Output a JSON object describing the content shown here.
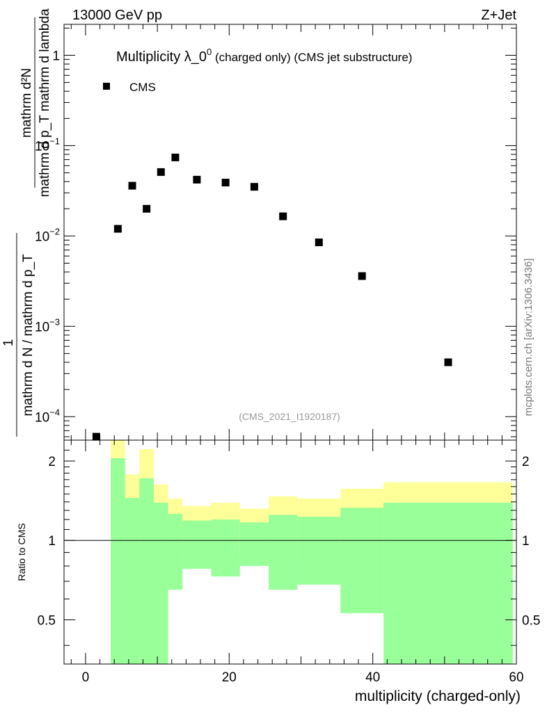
{
  "chart_data": {
    "type": "scatter",
    "header_left": "13000 GeV pp",
    "header_right": "Z+Jet",
    "title_main": "Multiplicity λ_0",
    "title_sup": "0",
    "title_rest": " (charged only) (CMS jet substructure)",
    "ylabel_top": "mathrm d²N",
    "ylabel_bottom": "mathrm d p_T mathrm d lambda",
    "ylabel_lower_numerator": "1",
    "ylabel_lower_denominator": "mathrm d N / mathrm d p_T",
    "watermark": "(CMS_2021_I1920187)",
    "side_label": "mcplots.cern.ch [arXiv:1306.3436]",
    "xlabel": "multiplicity (charged-only)",
    "ratio_ylabel": "Ratio to CMS",
    "xlim": [
      -3,
      60
    ],
    "ylim_log": [
      5.5e-05,
      2.2
    ],
    "ratio_ylim": [
      0.34,
      2.4
    ],
    "x_ticks": [
      "0",
      "20",
      "40",
      "60"
    ],
    "y_ticks": [
      {
        "base": "1",
        "exp": ""
      },
      {
        "base": "10",
        "exp": "−1"
      },
      {
        "base": "10",
        "exp": "−2"
      },
      {
        "base": "10",
        "exp": "−3"
      },
      {
        "base": "10",
        "exp": "−4"
      }
    ],
    "ratio_ticks": [
      "0.5",
      "1",
      "2"
    ],
    "legend": [
      {
        "name": "CMS",
        "marker": "square",
        "color": "#000000"
      }
    ],
    "series": [
      {
        "name": "CMS",
        "x": [
          1.5,
          4.5,
          6.5,
          8.5,
          10.5,
          12.5,
          15.5,
          19.5,
          23.5,
          27.5,
          32.5,
          38.5,
          50.5
        ],
        "y": [
          6e-05,
          0.012,
          0.036,
          0.02,
          0.051,
          0.074,
          0.042,
          0.039,
          0.035,
          0.0165,
          0.0085,
          0.0036,
          0.0004
        ]
      }
    ],
    "ratio_bands": {
      "inner_color": "#99ff99",
      "outer_color": "#ffff99",
      "bins": [
        {
          "x0": 3.5,
          "x1": 5.5,
          "inner": [
            0.34,
            2.05
          ],
          "outer": [
            0.34,
            2.4
          ]
        },
        {
          "x0": 5.5,
          "x1": 7.5,
          "inner": [
            0.34,
            1.45
          ],
          "outer": [
            0.68,
            1.78
          ]
        },
        {
          "x0": 7.5,
          "x1": 9.5,
          "inner": [
            0.34,
            1.72
          ],
          "outer": [
            0.34,
            2.22
          ]
        },
        {
          "x0": 9.5,
          "x1": 11.5,
          "inner": [
            0.34,
            1.39
          ],
          "outer": [
            0.62,
            1.63
          ]
        },
        {
          "x0": 11.5,
          "x1": 13.5,
          "inner": [
            0.65,
            1.26
          ],
          "outer": [
            0.79,
            1.44
          ]
        },
        {
          "x0": 13.5,
          "x1": 17.5,
          "inner": [
            0.78,
            1.19
          ],
          "outer": [
            0.88,
            1.35
          ]
        },
        {
          "x0": 17.5,
          "x1": 21.5,
          "inner": [
            0.73,
            1.2
          ],
          "outer": [
            0.87,
            1.39
          ]
        },
        {
          "x0": 21.5,
          "x1": 25.5,
          "inner": [
            0.8,
            1.17
          ],
          "outer": [
            0.9,
            1.32
          ]
        },
        {
          "x0": 25.5,
          "x1": 29.5,
          "inner": [
            0.65,
            1.25
          ],
          "outer": [
            0.84,
            1.47
          ]
        },
        {
          "x0": 29.5,
          "x1": 35.5,
          "inner": [
            0.68,
            1.23
          ],
          "outer": [
            0.85,
            1.44
          ]
        },
        {
          "x0": 35.5,
          "x1": 41.5,
          "inner": [
            0.53,
            1.33
          ],
          "outer": [
            0.8,
            1.57
          ]
        },
        {
          "x0": 41.5,
          "x1": 59.5,
          "inner": [
            0.34,
            1.39
          ],
          "outer": [
            0.74,
            1.66
          ]
        }
      ]
    }
  }
}
